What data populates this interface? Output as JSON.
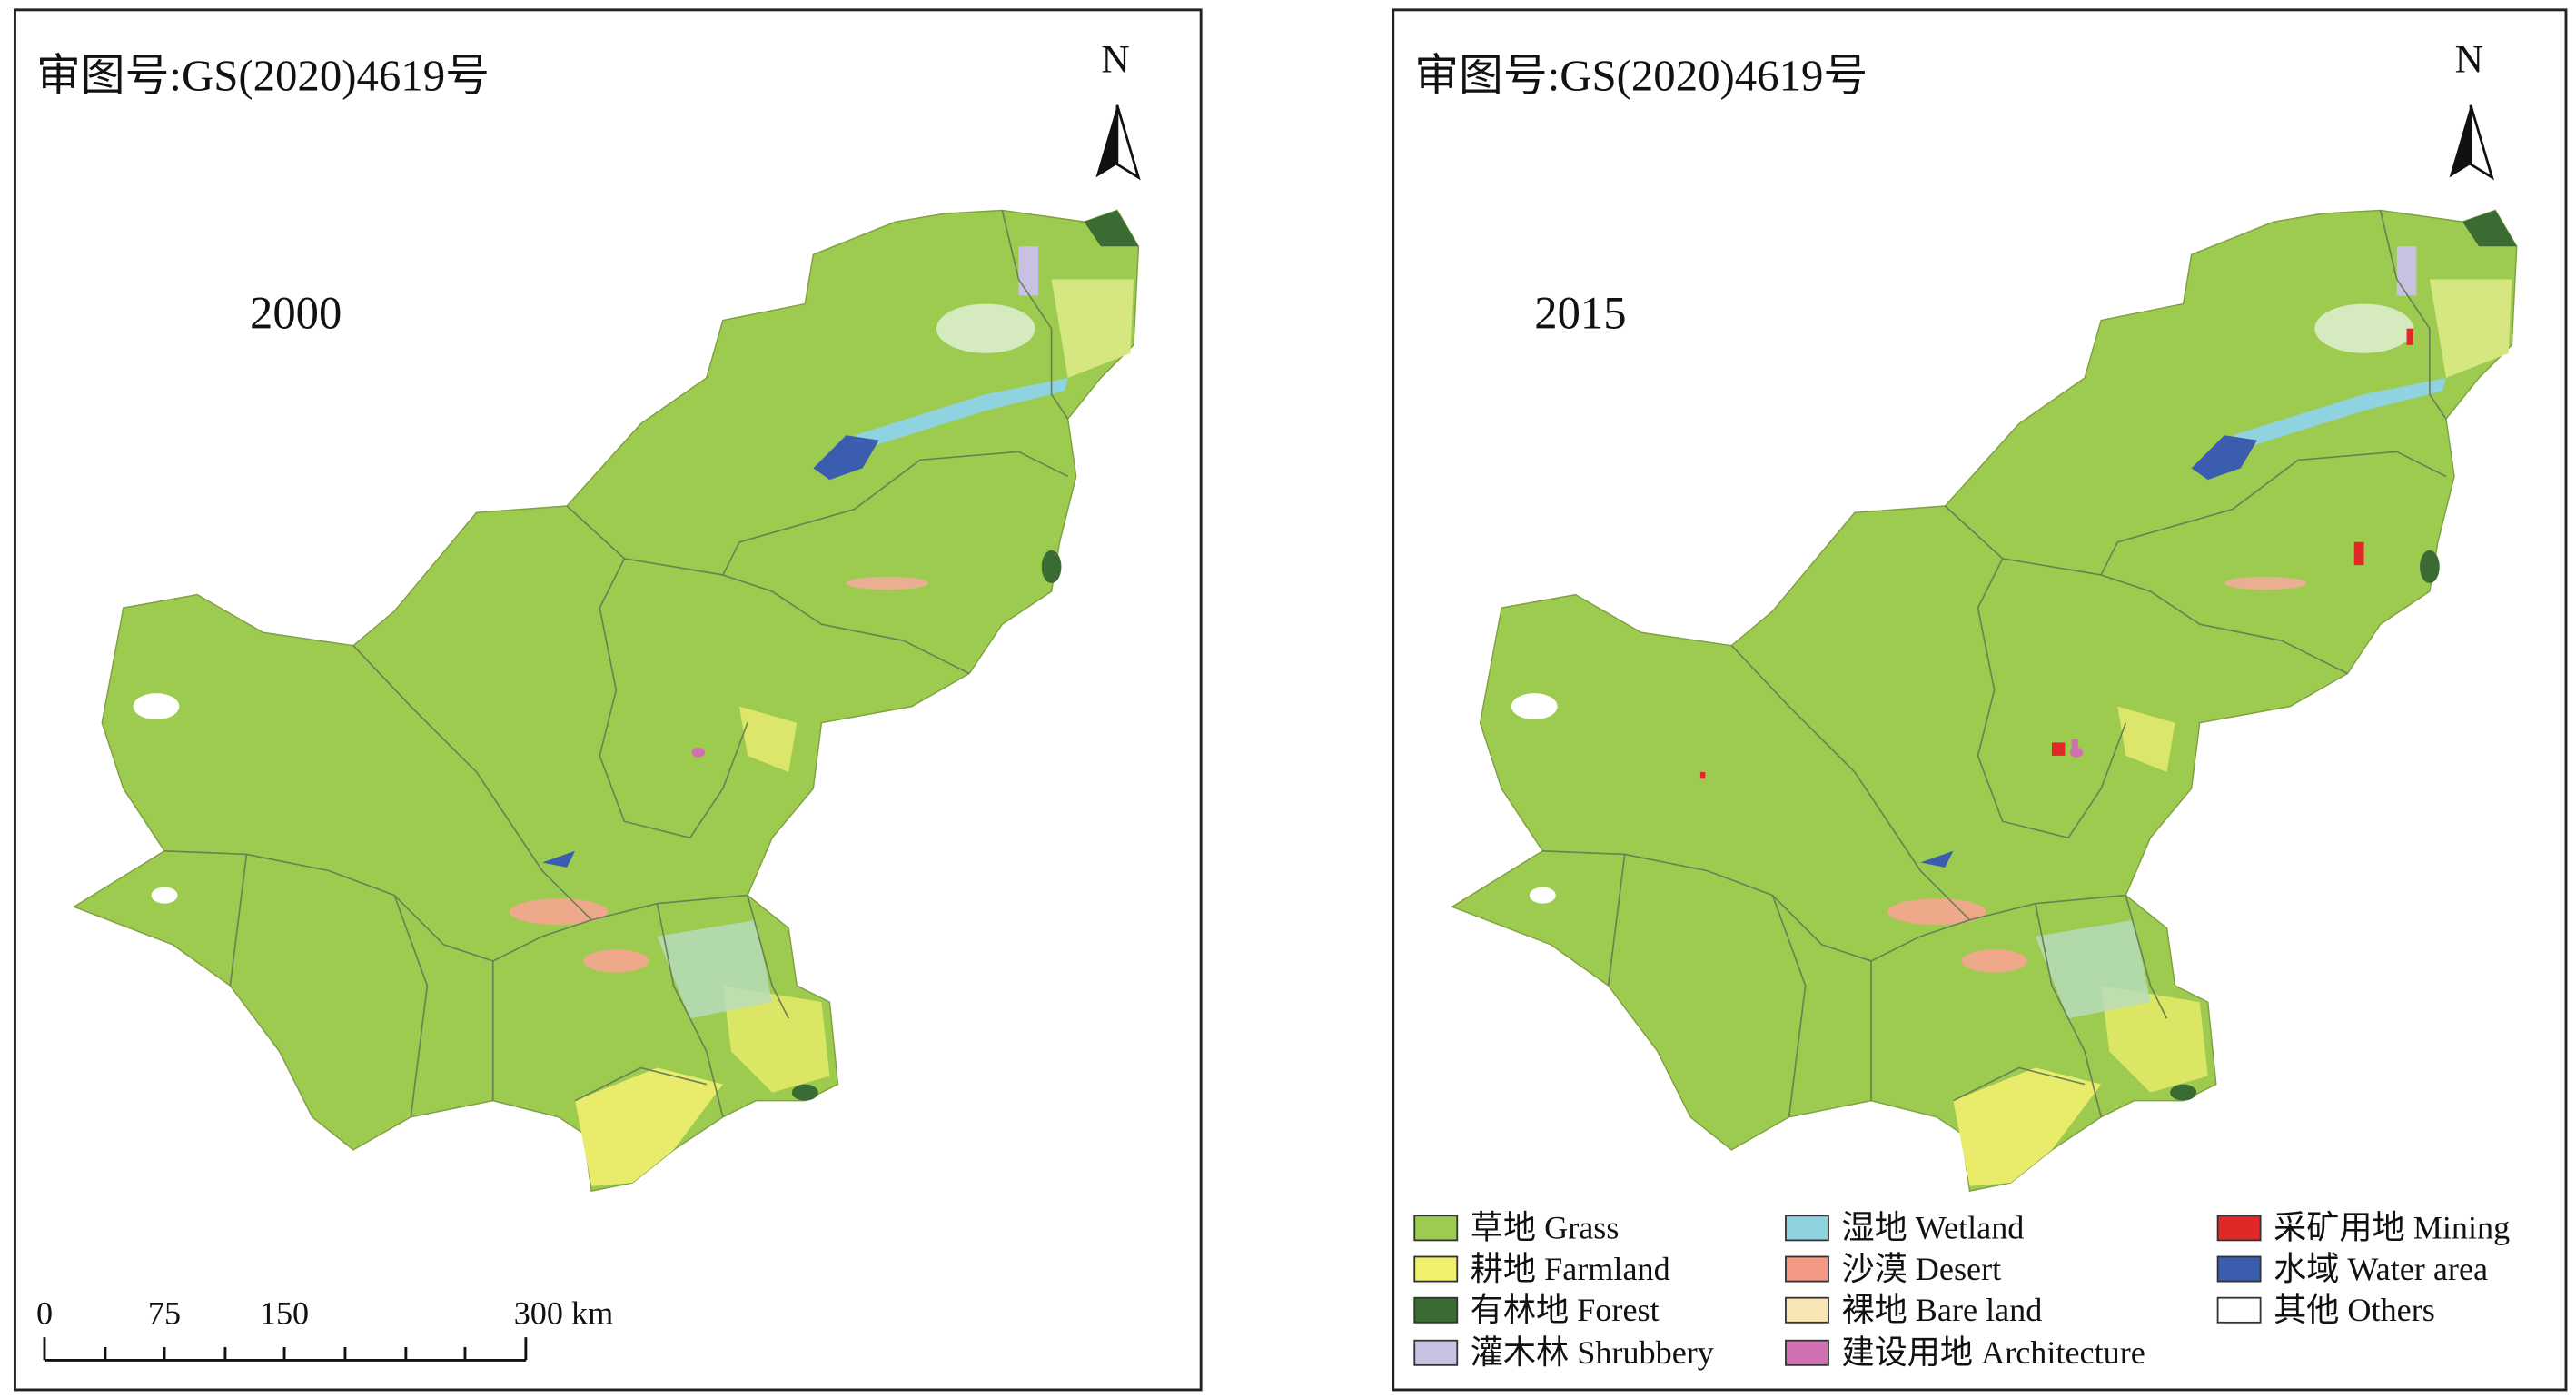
{
  "panels": [
    {
      "approval_number": "审图号:GS(2020)4619号",
      "year": "2000",
      "north": "N"
    },
    {
      "approval_number": "审图号:GS(2020)4619号",
      "year": "2015",
      "north": "N"
    }
  ],
  "scale_bar": {
    "labels": [
      "0",
      "75",
      "150",
      "300 km"
    ]
  },
  "legend": {
    "items": [
      {
        "label": "草地 Grass",
        "color": "#9dcb4f"
      },
      {
        "label": "耕地 Farmland",
        "color": "#f0f06e"
      },
      {
        "label": "有林地 Forest",
        "color": "#3a6b32"
      },
      {
        "label": "灌木林 Shrubbery",
        "color": "#c9c1e2"
      },
      {
        "label": "湿地 Wetland",
        "color": "#8fd2e0"
      },
      {
        "label": "沙漠 Desert",
        "color": "#f49a84"
      },
      {
        "label": "裸地 Bare land",
        "color": "#f8e6b4"
      },
      {
        "label": "建设用地 Architecture",
        "color": "#d070b0"
      },
      {
        "label": "采矿用地 Mining",
        "color": "#e02828"
      },
      {
        "label": "水域 Water area",
        "color": "#3a5db0"
      },
      {
        "label": "其他 Others",
        "color": "#ffffff"
      }
    ]
  }
}
